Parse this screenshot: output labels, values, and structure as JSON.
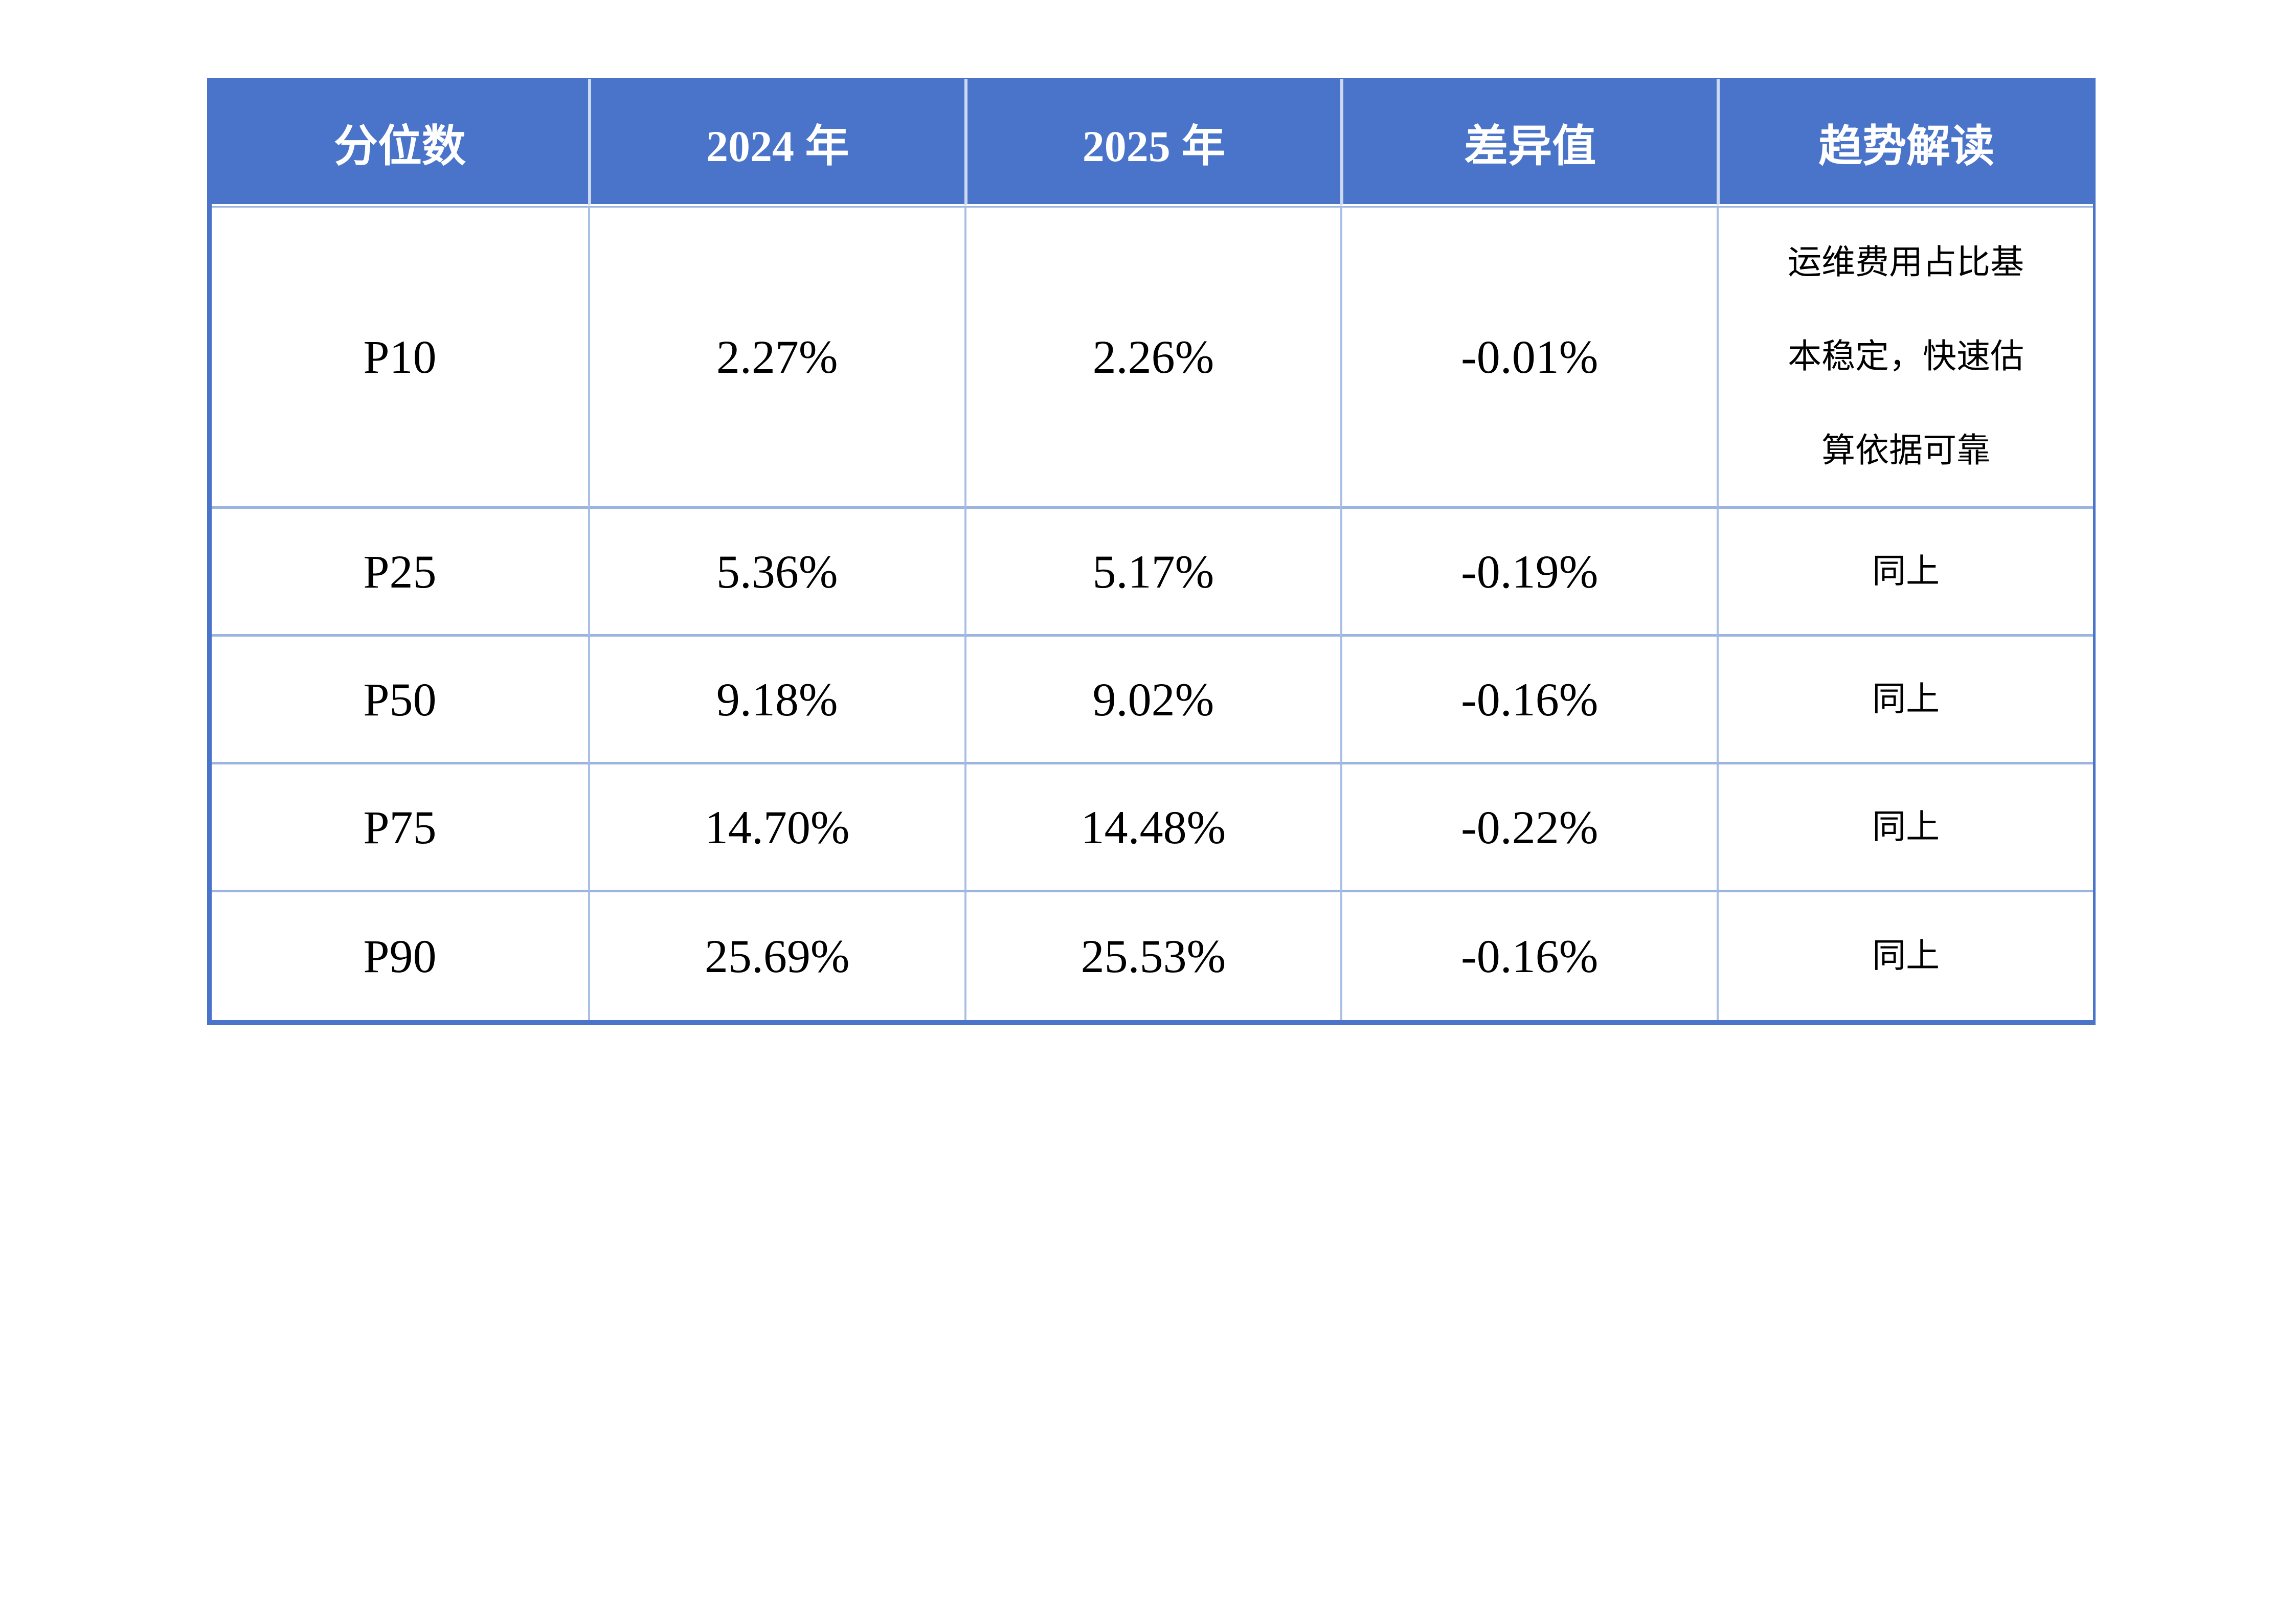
{
  "colors": {
    "header-bg": "#4a74c9",
    "header-text": "#ffffff",
    "outer-border": "#4a74c9",
    "inner-border": "#a9bfe4",
    "row-border": "#9cb4e0",
    "header-divider": "#ccd9f0",
    "text": "#000000",
    "page-bg": "#ffffff"
  },
  "table": {
    "columns": [
      "分位数",
      "2024 年",
      "2025 年",
      "差异值",
      "趋势解读"
    ],
    "rows": [
      {
        "percentile": "P10",
        "y2024": "2.27%",
        "y2025": "2.26%",
        "diff": "-0.01%",
        "trend": "运维费用占比基本稳定，快速估算依据可靠"
      },
      {
        "percentile": "P25",
        "y2024": "5.36%",
        "y2025": "5.17%",
        "diff": "-0.19%",
        "trend": "同上"
      },
      {
        "percentile": "P50",
        "y2024": "9.18%",
        "y2025": "9.02%",
        "diff": "-0.16%",
        "trend": "同上"
      },
      {
        "percentile": "P75",
        "y2024": "14.70%",
        "y2025": "14.48%",
        "diff": "-0.22%",
        "trend": "同上"
      },
      {
        "percentile": "P90",
        "y2024": "25.69%",
        "y2025": "25.53%",
        "diff": "-0.16%",
        "trend": "同上"
      }
    ]
  }
}
